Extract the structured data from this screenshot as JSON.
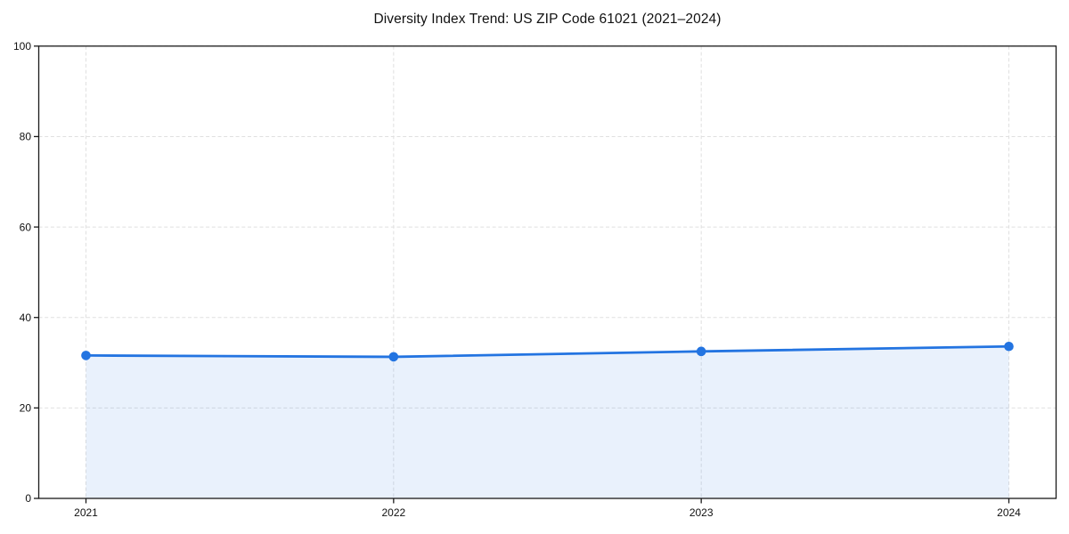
{
  "chart_title": "Diversity Index Trend: US ZIP Code 61021 (2021–2024)",
  "chart_data": {
    "type": "area",
    "categories": [
      "2021",
      "2022",
      "2023",
      "2024"
    ],
    "series": [
      {
        "name": "Diversity Index",
        "values": [
          31.6,
          31.3,
          32.5,
          33.6
        ]
      }
    ],
    "title": "Diversity Index Trend: US ZIP Code 61021 (2021–2024)",
    "xlabel": "",
    "ylabel": "",
    "ylim": [
      0,
      100
    ],
    "yticks": [
      0,
      20,
      40,
      60,
      80,
      100
    ],
    "grid": "dashed, horizontal and vertical",
    "legend": "none",
    "marker": "circle",
    "line_color": "#2374E1",
    "fill_color": "rgba(35, 116, 225, 0.10)",
    "grid_color": "#e0e0e0",
    "axis_color": "#1a1a1a",
    "background_color": "#ffffff"
  }
}
